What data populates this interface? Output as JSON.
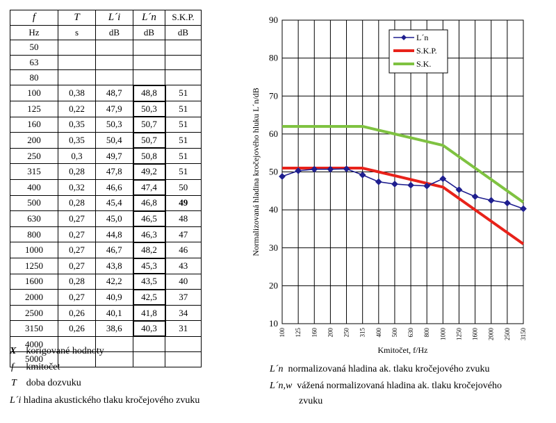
{
  "table": {
    "header1": [
      "f",
      "T",
      "L´i",
      "L´n",
      "S.K.P."
    ],
    "header2": [
      "Hz",
      "s",
      "dB",
      "dB",
      "dB"
    ],
    "rows": [
      [
        "50",
        "",
        "",
        "",
        ""
      ],
      [
        "63",
        "",
        "",
        "",
        ""
      ],
      [
        "80",
        "",
        "",
        "",
        ""
      ],
      [
        "100",
        "0,38",
        "48,7",
        "48,8",
        "51"
      ],
      [
        "125",
        "0,22",
        "47,9",
        "50,3",
        "51"
      ],
      [
        "160",
        "0,35",
        "50,3",
        "50,7",
        "51"
      ],
      [
        "200",
        "0,35",
        "50,4",
        "50,7",
        "51"
      ],
      [
        "250",
        "0,3",
        "49,7",
        "50,8",
        "51"
      ],
      [
        "315",
        "0,28",
        "47,8",
        "49,2",
        "51"
      ],
      [
        "400",
        "0,32",
        "46,6",
        "47,4",
        "50"
      ],
      [
        "500",
        "0,28",
        "45,4",
        "46,8",
        "49"
      ],
      [
        "630",
        "0,27",
        "45,0",
        "46,5",
        "48"
      ],
      [
        "800",
        "0,27",
        "44,8",
        "46,3",
        "47"
      ],
      [
        "1000",
        "0,27",
        "46,7",
        "48,2",
        "46"
      ],
      [
        "1250",
        "0,27",
        "43,8",
        "45,3",
        "43"
      ],
      [
        "1600",
        "0,28",
        "42,2",
        "43,5",
        "40"
      ],
      [
        "2000",
        "0,27",
        "40,9",
        "42,5",
        "37"
      ],
      [
        "2500",
        "0,26",
        "40,1",
        "41,8",
        "34"
      ],
      [
        "3150",
        "0,26",
        "38,6",
        "40,3",
        "31"
      ],
      [
        "4000",
        "",
        "",
        "",
        ""
      ],
      [
        "5000",
        "",
        "",
        "",
        ""
      ]
    ],
    "bold_cell": {
      "row": 10,
      "col": 4
    }
  },
  "legend_left": [
    {
      "symbol": "X",
      "text": "korigované hodnoty"
    },
    {
      "symbol": "f",
      "text": "kmitočet"
    },
    {
      "symbol": "T",
      "text": "doba dozvuku"
    },
    {
      "symbol": "L´i",
      "text": "hladina akustického tlaku kročejového zvuku"
    }
  ],
  "legend_right": [
    {
      "symbol": "L´n",
      "text": "normalizovaná hladina ak. tlaku kročejového zvuku"
    },
    {
      "symbol": "L´n,w",
      "text": "vážená normalizovaná hladina ak. tlaku kročejového",
      "cont": "zvuku"
    }
  ],
  "chart_data": {
    "type": "line",
    "xlabel": "Kmitočet, f/Hz",
    "ylabel": "Normalizovaná hladina kročejového hluku L´n/dB",
    "categories": [
      "100",
      "125",
      "160",
      "200",
      "250",
      "315",
      "400",
      "500",
      "630",
      "800",
      "1000",
      "1250",
      "1600",
      "2000",
      "2500",
      "3150"
    ],
    "ylim": [
      10,
      90
    ],
    "yticks": [
      "10",
      "20",
      "30",
      "40",
      "50",
      "60",
      "70",
      "80",
      "90"
    ],
    "grid": true,
    "legend_position": "top-right",
    "series": [
      {
        "name": "L´n",
        "color": "#1f1f8f",
        "marker": "diamond",
        "values": [
          48.8,
          50.3,
          50.7,
          50.7,
          50.8,
          49.2,
          47.4,
          46.8,
          46.5,
          46.3,
          48.2,
          45.3,
          43.5,
          42.5,
          41.8,
          40.3
        ]
      },
      {
        "name": "S.K.P.",
        "color": "#e8221a",
        "values": [
          51,
          51,
          51,
          51,
          51,
          51,
          50,
          49,
          48,
          47,
          46,
          43,
          40,
          37,
          34,
          31
        ]
      },
      {
        "name": "S.K.",
        "color": "#7fc241",
        "values": [
          62,
          62,
          62,
          62,
          62,
          62,
          61,
          60,
          59,
          58,
          57,
          54,
          51,
          48,
          45,
          42
        ]
      }
    ]
  }
}
